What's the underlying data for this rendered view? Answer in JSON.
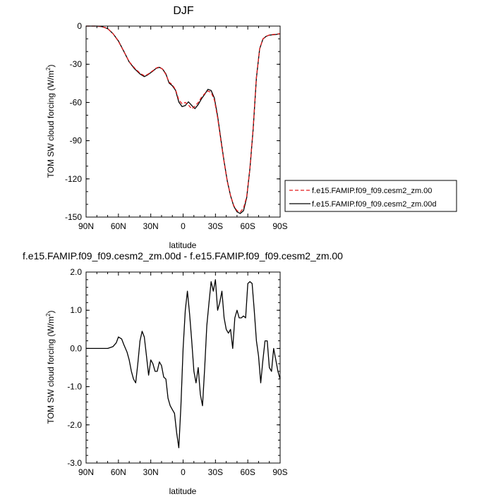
{
  "figure": {
    "top_title": "DJF",
    "bottom_title": "f.e15.FAMIP.f09_f09.cesm2_zm.00d - f.e15.FAMIP.f09_f09.cesm2_zm.00"
  },
  "chart_data": [
    {
      "type": "line",
      "title": "DJF",
      "xlabel": "latitude",
      "ylabel_main": "TOM SW cloud forcing (W/m",
      "ylabel_sup": "2",
      "ylabel_close": ")",
      "xlim": [
        90,
        -90
      ],
      "ylim": [
        -150,
        0
      ],
      "x_ticks": [
        90,
        60,
        30,
        0,
        -30,
        -60,
        -90
      ],
      "x_tick_labels": [
        "90N",
        "60N",
        "30N",
        "0",
        "30S",
        "60S",
        "90S"
      ],
      "y_ticks": [
        0,
        -30,
        -60,
        -90,
        -120,
        -150
      ],
      "y_tick_labels": [
        "0",
        "-30",
        "-60",
        "-90",
        "-120",
        "-150"
      ],
      "legend_position": "right",
      "series": [
        {
          "name": "f.e15.FAMIP.f09_f09.cesm2_zm.00",
          "color": "#e31a1c",
          "dash": "dashed",
          "x": [
            90,
            85,
            80,
            75,
            70,
            65,
            60,
            55,
            50,
            45,
            40,
            36,
            33,
            28,
            25,
            22,
            19,
            16,
            13,
            10,
            7,
            4,
            1,
            -2,
            -5,
            -8,
            -11,
            -14,
            -17,
            -20,
            -23,
            -26,
            -29,
            -32,
            -35,
            -38,
            -41,
            -44,
            -47,
            -50,
            -53,
            -56,
            -59,
            -62,
            -65,
            -68,
            -71,
            -74,
            -77,
            -80,
            -85,
            -90
          ],
          "y": [
            0,
            0,
            0,
            -0.5,
            -2,
            -6,
            -12,
            -20,
            -28,
            -33,
            -37,
            -39,
            -38,
            -35,
            -33,
            -32,
            -34,
            -38,
            -44,
            -46,
            -50,
            -58,
            -61,
            -60,
            -62,
            -65,
            -63,
            -60,
            -56,
            -53,
            -51,
            -52,
            -58,
            -72,
            -90,
            -107,
            -122,
            -133,
            -141,
            -145,
            -146,
            -143,
            -134,
            -112,
            -80,
            -40,
            -18,
            -10,
            -8,
            -7,
            -6.5,
            -6
          ]
        },
        {
          "name": "f.e15.FAMIP.f09_f09.cesm2_zm.00d",
          "color": "#000000",
          "dash": "solid",
          "x": [
            90,
            85,
            80,
            75,
            70,
            65,
            60,
            55,
            50,
            45,
            40,
            36,
            33,
            28,
            25,
            22,
            19,
            16,
            13,
            10,
            7,
            4,
            1,
            -2,
            -5,
            -8,
            -11,
            -14,
            -17,
            -20,
            -23,
            -26,
            -29,
            -32,
            -35,
            -38,
            -41,
            -44,
            -47,
            -50,
            -53,
            -56,
            -59,
            -62,
            -65,
            -68,
            -71,
            -74,
            -77,
            -80,
            -85,
            -90
          ],
          "y": [
            0,
            0,
            0,
            -0.5,
            -2,
            -6,
            -11.7,
            -19.8,
            -28.2,
            -33.6,
            -37.6,
            -39.7,
            -38.4,
            -35.3,
            -33.2,
            -32.4,
            -33.8,
            -37.6,
            -44.7,
            -46.8,
            -50.4,
            -59.6,
            -63.2,
            -62.4,
            -59.5,
            -62.4,
            -64.8,
            -61.6,
            -57.2,
            -53.6,
            -49.7,
            -50.6,
            -56.5,
            -70.7,
            -88.9,
            -106.4,
            -121.6,
            -133.2,
            -141.5,
            -145.9,
            -147.2,
            -145,
            -134.8,
            -111.8,
            -80.8,
            -40.6,
            -17.8,
            -10.2,
            -8.1,
            -7.1,
            -6.7,
            -6.1
          ]
        }
      ]
    },
    {
      "type": "line",
      "title": "f.e15.FAMIP.f09_f09.cesm2_zm.00d - f.e15.FAMIP.f09_f09.cesm2_zm.00",
      "xlabel": "latitude",
      "ylabel_main": "TOM SW cloud forcing (W/m",
      "ylabel_sup": "2",
      "ylabel_close": ")",
      "xlim": [
        90,
        -90
      ],
      "ylim": [
        -3.0,
        2.0
      ],
      "x_ticks": [
        90,
        60,
        30,
        0,
        -30,
        -60,
        -90
      ],
      "x_tick_labels": [
        "90N",
        "60N",
        "30N",
        "0",
        "30S",
        "60S",
        "90S"
      ],
      "y_ticks": [
        2.0,
        1.0,
        0.0,
        -1.0,
        -2.0,
        -3.0
      ],
      "y_tick_labels": [
        "2.0",
        "1.0",
        "0.0",
        "-1.0",
        "-2.0",
        "-3.0"
      ],
      "series": [
        {
          "color": "#000000",
          "dash": "solid",
          "x": [
            90,
            80,
            70,
            65,
            62,
            60,
            57,
            55,
            52,
            50,
            48,
            46,
            44,
            42,
            40,
            38,
            36,
            34,
            32,
            30,
            28,
            26,
            24,
            22,
            20,
            18,
            16,
            14,
            12,
            10,
            8,
            6,
            4,
            2,
            0,
            -2,
            -4,
            -6,
            -8,
            -10,
            -12,
            -14,
            -16,
            -18,
            -20,
            -22,
            -24,
            -26,
            -28,
            -30,
            -32,
            -34,
            -36,
            -38,
            -40,
            -42,
            -44,
            -46,
            -48,
            -50,
            -52,
            -54,
            -56,
            -58,
            -60,
            -62,
            -64,
            -66,
            -68,
            -70,
            -72,
            -74,
            -76,
            -78,
            -80,
            -82,
            -84,
            -86,
            -88,
            -90
          ],
          "y": [
            0,
            0,
            0,
            0.05,
            0.15,
            0.3,
            0.25,
            0.1,
            -0.1,
            -0.3,
            -0.6,
            -0.8,
            -0.9,
            -0.4,
            0.2,
            0.45,
            0.3,
            -0.2,
            -0.7,
            -0.3,
            -0.4,
            -0.6,
            -0.6,
            -0.35,
            -0.45,
            -0.75,
            -0.8,
            -1.3,
            -1.5,
            -1.6,
            -1.7,
            -2.2,
            -2.6,
            -1.5,
            0.0,
            1.0,
            1.5,
            0.9,
            0.2,
            -0.6,
            -0.9,
            -0.5,
            -1.2,
            -1.5,
            -0.5,
            0.6,
            1.2,
            1.75,
            1.5,
            1.8,
            1.0,
            1.2,
            1.5,
            0.8,
            0.5,
            0.4,
            0.5,
            0.0,
            0.8,
            1.0,
            0.8,
            0.8,
            0.85,
            0.8,
            1.7,
            1.75,
            1.7,
            1.0,
            0.2,
            -0.2,
            -0.9,
            -0.3,
            0.2,
            0.2,
            -0.5,
            -0.6,
            0.0,
            -0.3,
            -0.6,
            -0.8
          ]
        }
      ]
    }
  ]
}
